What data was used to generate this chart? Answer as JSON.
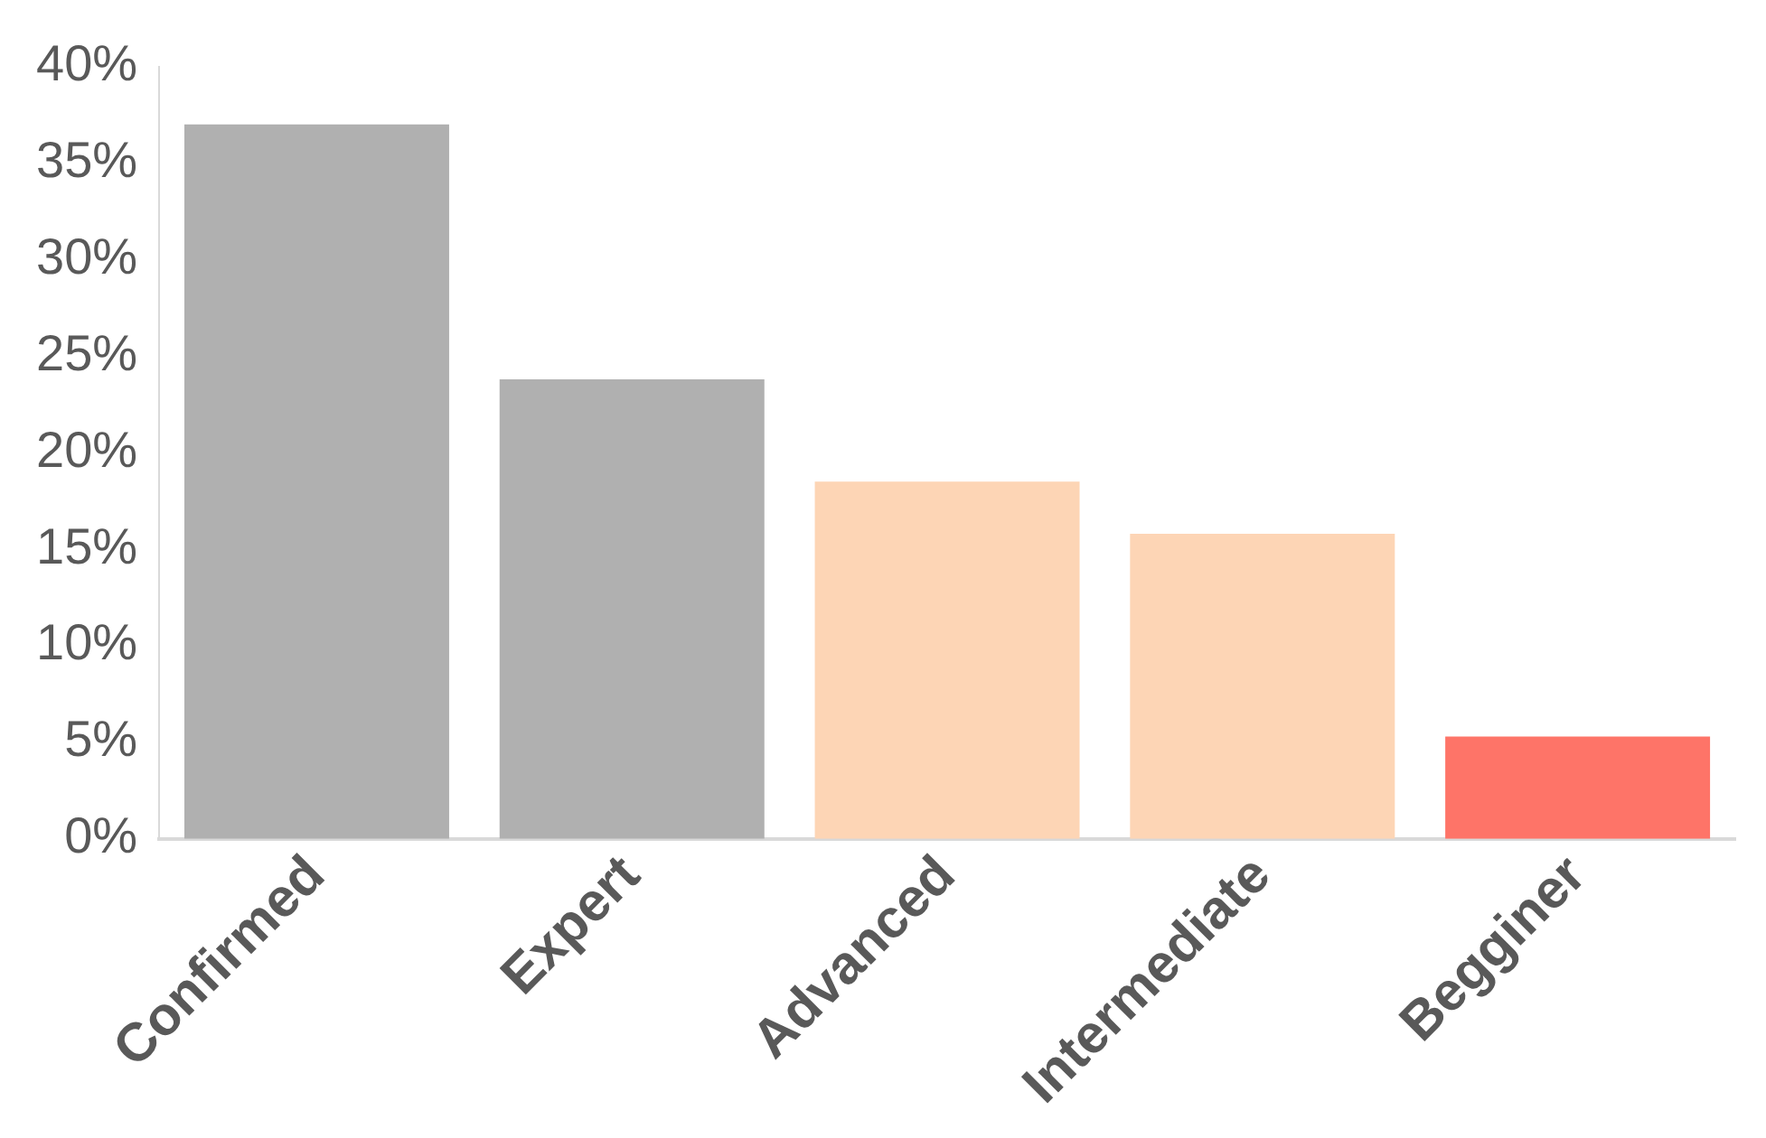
{
  "chart_data": {
    "type": "bar",
    "categories": [
      "Confirmed",
      "Expert",
      "Advanced",
      "Intermediate",
      "Begginer"
    ],
    "values": [
      37,
      23.8,
      18.5,
      15.8,
      5.3
    ],
    "colors": [
      "#b0b0b0",
      "#b0b0b0",
      "#fdd5b5",
      "#fdd5b5",
      "#fe7468"
    ],
    "ylim": [
      0,
      40
    ],
    "yticks": [
      {
        "value": 0,
        "label": "0%"
      },
      {
        "value": 5,
        "label": "5%"
      },
      {
        "value": 10,
        "label": "10%"
      },
      {
        "value": 15,
        "label": "15%"
      },
      {
        "value": 20,
        "label": "20%"
      },
      {
        "value": 25,
        "label": "25%"
      },
      {
        "value": 30,
        "label": "30%"
      },
      {
        "value": 35,
        "label": "35%"
      },
      {
        "value": 40,
        "label": "40%"
      }
    ],
    "grid": false,
    "legend": false
  }
}
